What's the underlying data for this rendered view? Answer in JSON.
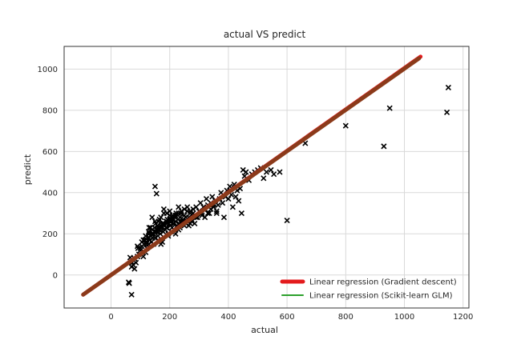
{
  "chart_data": {
    "type": "scatter",
    "title": "actual VS predict",
    "xlabel": "actual",
    "ylabel": "predict",
    "xlim": [
      -160,
      1220
    ],
    "ylim": [
      -160,
      1110
    ],
    "xticks": [
      0,
      200,
      400,
      600,
      800,
      1000,
      1200
    ],
    "yticks": [
      0,
      200,
      400,
      600,
      800,
      1000
    ],
    "grid": true,
    "legend_position": "lower-right",
    "colors": {
      "points": "#000000",
      "gradient_descent": "#e31a1c",
      "scikit_glm": "#2ca02c",
      "overlap_line": "#8b3a1a",
      "grid": "#d9d9d9",
      "frame": "#333333"
    },
    "series": [
      {
        "name": "Linear regression (Gradient descent)",
        "kind": "line",
        "x": [
          -95,
          1055
        ],
        "y": [
          -95,
          1060
        ]
      },
      {
        "name": "Linear regression (Scikit-learn GLM)",
        "kind": "line",
        "x": [
          -95,
          1050
        ],
        "y": [
          -95,
          1052
        ]
      },
      {
        "name": "",
        "kind": "scatter-x",
        "x": [
          60,
          62,
          70,
          75,
          80,
          85,
          90,
          95,
          100,
          105,
          110,
          112,
          115,
          118,
          120,
          122,
          125,
          128,
          130,
          132,
          135,
          138,
          140,
          142,
          145,
          148,
          150,
          152,
          155,
          158,
          160,
          162,
          165,
          168,
          170,
          172,
          175,
          178,
          180,
          182,
          185,
          188,
          190,
          192,
          195,
          198,
          200,
          202,
          205,
          208,
          210,
          212,
          215,
          218,
          220,
          222,
          225,
          228,
          230,
          232,
          235,
          238,
          240,
          245,
          250,
          255,
          260,
          265,
          270,
          275,
          280,
          285,
          290,
          295,
          300,
          305,
          310,
          315,
          320,
          325,
          330,
          335,
          340,
          345,
          350,
          355,
          360,
          365,
          370,
          375,
          380,
          385,
          390,
          395,
          400,
          405,
          410,
          415,
          420,
          425,
          430,
          435,
          440,
          445,
          450,
          455,
          460,
          470,
          480,
          490,
          500,
          510,
          520,
          530,
          545,
          555,
          575,
          600,
          662,
          800,
          930,
          950,
          1145,
          1150,
          65,
          70,
          72,
          80,
          92,
          150,
          155,
          105,
          118,
          160,
          135,
          128,
          145,
          175,
          165,
          188,
          195,
          205,
          215,
          225,
          235,
          245,
          255,
          265,
          275,
          285,
          150,
          140,
          130,
          120,
          110,
          100,
          90,
          170,
          180,
          190,
          200,
          210,
          220,
          230,
          240,
          250,
          260,
          270,
          280,
          290,
          300,
          310,
          320,
          330,
          340,
          350,
          360,
          160,
          170,
          180,
          190,
          200,
          210,
          220,
          230,
          240,
          250,
          260,
          270,
          120,
          130,
          140,
          150,
          160,
          170,
          180,
          190,
          200,
          210,
          220
        ],
        "y": [
          -35,
          -40,
          -95,
          50,
          80,
          60,
          90,
          100,
          120,
          140,
          90,
          150,
          170,
          110,
          160,
          130,
          180,
          150,
          200,
          170,
          190,
          160,
          220,
          180,
          200,
          230,
          180,
          250,
          210,
          240,
          190,
          260,
          220,
          200,
          280,
          230,
          250,
          210,
          300,
          240,
          220,
          260,
          230,
          270,
          200,
          250,
          310,
          240,
          270,
          230,
          290,
          250,
          220,
          280,
          260,
          300,
          240,
          270,
          330,
          250,
          280,
          300,
          260,
          270,
          290,
          250,
          310,
          280,
          300,
          260,
          320,
          290,
          330,
          280,
          310,
          350,
          300,
          330,
          320,
          370,
          340,
          300,
          350,
          380,
          330,
          360,
          310,
          340,
          370,
          400,
          350,
          280,
          380,
          410,
          370,
          430,
          390,
          330,
          440,
          380,
          410,
          360,
          420,
          300,
          510,
          480,
          500,
          460,
          490,
          500,
          510,
          520,
          470,
          500,
          510,
          490,
          500,
          265,
          640,
          725,
          625,
          810,
          790,
          910,
          85,
          40,
          60,
          30,
          130,
          430,
          395,
          160,
          190,
          170,
          230,
          210,
          150,
          160,
          270,
          230,
          190,
          210,
          250,
          240,
          230,
          260,
          280,
          240,
          270,
          250,
          260,
          280,
          230,
          150,
          170,
          130,
          140,
          150,
          320,
          300,
          290,
          270,
          200,
          220,
          250,
          240,
          260,
          250,
          300,
          280,
          310,
          290,
          280,
          300,
          320,
          340,
          300,
          230,
          240,
          250,
          260,
          270,
          280,
          290,
          300,
          310,
          320,
          330,
          310,
          150,
          180,
          200,
          210,
          220,
          230,
          240,
          250,
          260,
          270,
          280
        ]
      }
    ]
  }
}
